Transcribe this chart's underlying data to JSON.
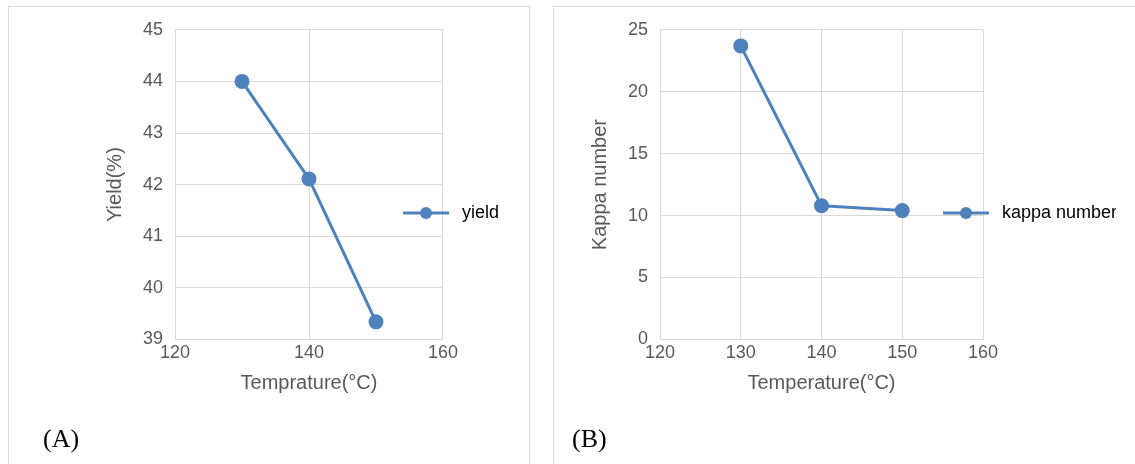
{
  "chart_data": [
    {
      "type": "line",
      "xlabel": "Temprature(°C)",
      "ylabel": "Yield(%)",
      "x": [
        130,
        140,
        150
      ],
      "series": [
        {
          "name": "yield",
          "color": "#4f81bd",
          "values": [
            44.0,
            42.11,
            39.34
          ]
        }
      ],
      "xlim": [
        120,
        160
      ],
      "xticks": [
        120,
        140,
        160
      ],
      "ylim": [
        39,
        45
      ],
      "yticks": [
        39,
        40,
        41,
        42,
        43,
        44,
        45
      ],
      "grid": true,
      "legend": "right",
      "marker": "circle",
      "annotations": [
        "(A)"
      ]
    },
    {
      "type": "line",
      "xlabel": "Temperature(°C)",
      "ylabel": "Kappa number",
      "x": [
        130,
        140,
        150
      ],
      "series": [
        {
          "name": "kappa number",
          "color": "#4f81bd",
          "values": [
            23.7,
            10.8,
            10.4
          ]
        }
      ],
      "xlim": [
        120,
        160
      ],
      "xticks": [
        120,
        130,
        140,
        150,
        160
      ],
      "ylim": [
        0,
        25
      ],
      "yticks": [
        0,
        5,
        10,
        15,
        20,
        25
      ],
      "grid": true,
      "legend": "right",
      "marker": "circle",
      "annotations": [
        "(B)"
      ]
    }
  ]
}
